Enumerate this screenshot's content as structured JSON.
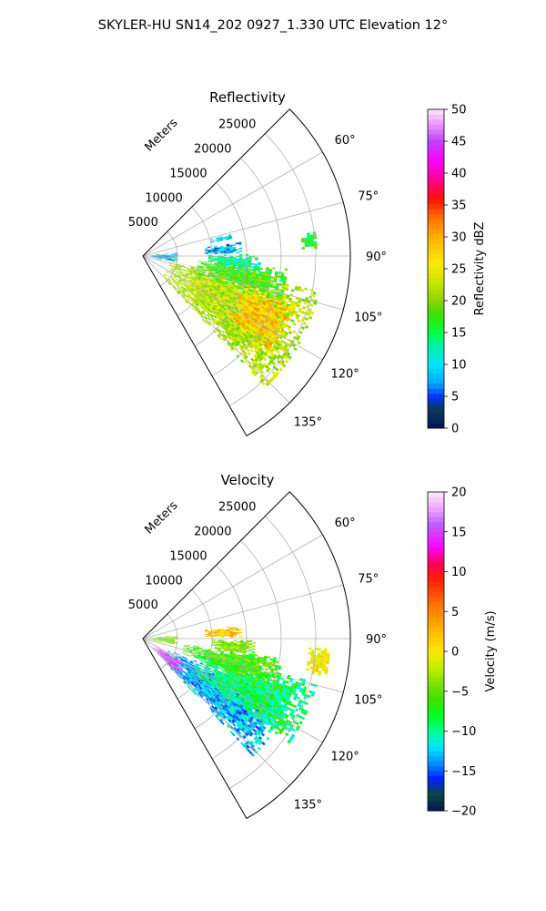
{
  "figure": {
    "suptitle": "SKYLER-HU  SN14_202  0927_1.330 UTC Elevation 12°"
  },
  "chart_data": [
    {
      "type": "heatmap",
      "projection": "polar-sector",
      "title": "Reflectivity",
      "radial_axis_label": "Meters",
      "radial_range": [
        0,
        30000
      ],
      "radial_ticks": [
        5000,
        10000,
        15000,
        20000,
        25000
      ],
      "radial_tick_labels": [
        "5000",
        "10000",
        "15000",
        "20000",
        "25000"
      ],
      "azimuth_range_deg": [
        45,
        150
      ],
      "azimuth_ticks": [
        60,
        75,
        90,
        105,
        120,
        135
      ],
      "azimuth_tick_labels": [
        "60°",
        "75°",
        "90°",
        "105°",
        "120°",
        "135°"
      ],
      "grid": true,
      "colorbar": {
        "label": "Reflectivity dBZ",
        "range": [
          0,
          50
        ],
        "ticks": [
          0,
          5,
          10,
          15,
          20,
          25,
          30,
          35,
          40,
          45,
          50
        ],
        "tick_labels": [
          "0",
          "5",
          "10",
          "15",
          "20",
          "25",
          "30",
          "35",
          "40",
          "45",
          "50"
        ],
        "stops": [
          [
            0,
            "#06135a"
          ],
          [
            3,
            "#0a3a5c"
          ],
          [
            5,
            "#0032ff"
          ],
          [
            7,
            "#00a8ff"
          ],
          [
            10,
            "#00e5ff"
          ],
          [
            13,
            "#00f0a8"
          ],
          [
            15,
            "#00ff40"
          ],
          [
            18,
            "#40e000"
          ],
          [
            20,
            "#8cd400"
          ],
          [
            23,
            "#c8e800"
          ],
          [
            26,
            "#ffe800"
          ],
          [
            30,
            "#ffb000"
          ],
          [
            33,
            "#ff7000"
          ],
          [
            36,
            "#ff1000"
          ],
          [
            39,
            "#ff0090"
          ],
          [
            42,
            "#ff00ff"
          ],
          [
            45,
            "#c040ff"
          ],
          [
            48,
            "#f0a0ff"
          ],
          [
            50,
            "#ffe8ff"
          ]
        ]
      },
      "echo_regions": [
        {
          "az": [
            101,
            137
          ],
          "r": [
            4000,
            26000
          ],
          "value": 22,
          "spread": 4
        },
        {
          "az": [
            108,
            126
          ],
          "r": [
            15000,
            23000
          ],
          "value": 28,
          "spread": 4
        },
        {
          "az": [
            95,
            108
          ],
          "r": [
            8000,
            21000
          ],
          "value": 18,
          "spread": 4
        },
        {
          "az": [
            89,
            97
          ],
          "r": [
            9000,
            17000
          ],
          "value": 14,
          "spread": 4
        },
        {
          "az": [
            82,
            88
          ],
          "r": [
            9000,
            14000
          ],
          "value": 8,
          "spread": 5
        },
        {
          "az": [
            76,
            79
          ],
          "r": [
            10000,
            13000
          ],
          "value": 10,
          "spread": 4
        },
        {
          "az": [
            82,
            87
          ],
          "r": [
            23000,
            25000
          ],
          "value": 16,
          "spread": 3
        },
        {
          "az": [
            84,
            100
          ],
          "r": [
            1000,
            5000
          ],
          "value": 8,
          "spread": 6
        }
      ]
    },
    {
      "type": "heatmap",
      "projection": "polar-sector",
      "title": "Velocity",
      "radial_axis_label": "Meters",
      "radial_range": [
        0,
        30000
      ],
      "radial_ticks": [
        5000,
        10000,
        15000,
        20000,
        25000
      ],
      "radial_tick_labels": [
        "5000",
        "10000",
        "15000",
        "20000",
        "25000"
      ],
      "azimuth_range_deg": [
        45,
        150
      ],
      "azimuth_ticks": [
        60,
        75,
        90,
        105,
        120,
        135
      ],
      "azimuth_tick_labels": [
        "60°",
        "75°",
        "90°",
        "105°",
        "120°",
        "135°"
      ],
      "grid": true,
      "colorbar": {
        "label": "Velocity (m/s)",
        "range": [
          -20,
          20
        ],
        "ticks": [
          -20,
          -15,
          -10,
          -5,
          0,
          5,
          10,
          15,
          20
        ],
        "tick_labels": [
          "−20",
          "−15",
          "−10",
          "−5",
          "0",
          "5",
          "10",
          "15",
          "20"
        ],
        "stops": [
          [
            -20,
            "#06135a"
          ],
          [
            -18,
            "#0a4a3a"
          ],
          [
            -16,
            "#0020ff"
          ],
          [
            -14,
            "#0090ff"
          ],
          [
            -12,
            "#00e8ff"
          ],
          [
            -10,
            "#00ff90"
          ],
          [
            -8,
            "#00ff20"
          ],
          [
            -6,
            "#40e000"
          ],
          [
            -4,
            "#80e000"
          ],
          [
            -2,
            "#c0f000"
          ],
          [
            0,
            "#ffe800"
          ],
          [
            3,
            "#ffb000"
          ],
          [
            6,
            "#ff7000"
          ],
          [
            9,
            "#ff2000"
          ],
          [
            11,
            "#ff0050"
          ],
          [
            13,
            "#ff00ff"
          ],
          [
            16,
            "#c060ff"
          ],
          [
            18,
            "#f0a8ff"
          ],
          [
            20,
            "#ffe8ff"
          ]
        ]
      },
      "echo_regions": [
        {
          "az": [
            113,
            137
          ],
          "r": [
            4000,
            23000
          ],
          "value": -13,
          "spread": 3
        },
        {
          "az": [
            104,
            125
          ],
          "r": [
            9000,
            26000
          ],
          "value": -9,
          "spread": 3
        },
        {
          "az": [
            98,
            110
          ],
          "r": [
            6000,
            20000
          ],
          "value": -6,
          "spread": 3
        },
        {
          "az": [
            91,
            98
          ],
          "r": [
            10000,
            16000
          ],
          "value": -4,
          "spread": 2
        },
        {
          "az": [
            93,
            101
          ],
          "r": [
            24000,
            27000
          ],
          "value": 0,
          "spread": 2
        },
        {
          "az": [
            120,
            135
          ],
          "r": [
            2000,
            7000
          ],
          "value": 15,
          "spread": 2
        },
        {
          "az": [
            82,
            89
          ],
          "r": [
            9000,
            14000
          ],
          "value": 2,
          "spread": 3
        },
        {
          "az": [
            84,
            100
          ],
          "r": [
            1000,
            5000
          ],
          "value": -4,
          "spread": 3
        }
      ]
    }
  ]
}
